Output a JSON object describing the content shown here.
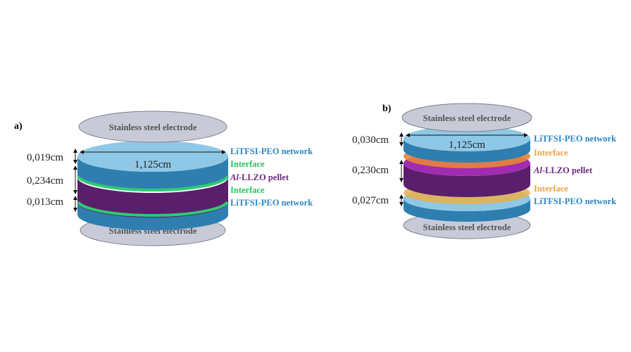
{
  "panels": [
    {
      "tag": "a)",
      "electrode_top": "Stainless steel electrode",
      "electrode_bottom": "Stainless steel electrode",
      "diameter": "1,125cm",
      "thickness": [
        "0,019cm",
        "0,234cm",
        "0,013cm"
      ],
      "labels": {
        "peo_top": "LiTFSI-PEO network",
        "interface_top": "Interface",
        "pellet_prefix": "Al",
        "pellet_rest": "-LLZO pellet",
        "interface_bottom": "Interface",
        "peo_bottom": "LiTFSI-PEO network"
      }
    },
    {
      "tag": "b)",
      "electrode_top": "Stainless steel electrode",
      "electrode_bottom": "Stainless steel electrode",
      "diameter": "1,125cm",
      "thickness": [
        "0,030cm",
        "0,230cm",
        "0,027cm"
      ],
      "labels": {
        "peo_top": "LiTFSI-PEO network",
        "interface_top": "Interface",
        "pellet_prefix": "Al",
        "pellet_rest": "-LLZO pellet",
        "interface_bottom": "Interface",
        "peo_bottom": "LiTFSI-PEO network"
      }
    }
  ],
  "colors": {
    "peo": "#2e7fb0",
    "peo_face": "#8fc8e6",
    "pellet": "#5a1f6a",
    "interface_a": "#2ecc71",
    "interface_b": "#f0a23c",
    "electrode": "#c9cad8"
  }
}
